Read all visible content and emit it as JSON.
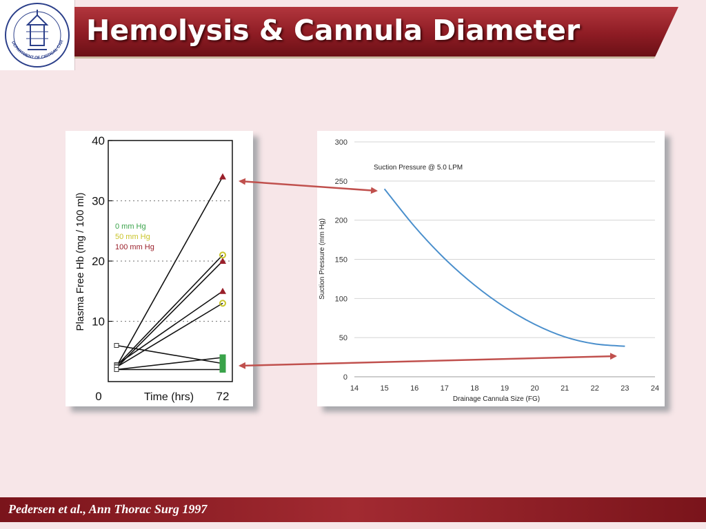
{
  "slide": {
    "title": "Hemolysis & Cannula Diameter",
    "footer_citation": "Pedersen et al., Ann Thorac Surg 1997",
    "logo_text": "DEPARTMENT OF CRITICAL CARE MEDICINE"
  },
  "colors": {
    "title_bar": "#8e1c24",
    "footer_bar": "#8e1c24",
    "background": "#f7e6e8",
    "arrow": "#c0504d",
    "curve": "#4a8fcc",
    "series_0": "#3aa34a",
    "series_50": "#c9c42a",
    "series_100": "#9a1f2a"
  },
  "chart_data": [
    {
      "type": "line",
      "title": "",
      "xlabel": "Time (hrs)",
      "ylabel": "Plasma Free Hb (mg / 100 ml)",
      "x_ticks": [
        "0",
        "72"
      ],
      "y_ticks": [
        "10",
        "20",
        "30",
        "40"
      ],
      "ylim": [
        0,
        40
      ],
      "grid": "dotted horizontal",
      "legend": {
        "placement": "left-middle",
        "entries": [
          "0 mm Hg",
          "50 mm Hg",
          "100 mm Hg"
        ]
      },
      "series": [
        {
          "name": "100 mm Hg",
          "start": 2.5,
          "end": 34
        },
        {
          "name": "100 mm Hg",
          "start": 2.3,
          "end": 20
        },
        {
          "name": "100 mm Hg",
          "start": 2.8,
          "end": 15
        },
        {
          "name": "50 mm Hg",
          "start": 2.6,
          "end": 21
        },
        {
          "name": "50 mm Hg",
          "start": 2.4,
          "end": 13
        },
        {
          "name": "0 mm Hg",
          "start": 6,
          "end": 3
        },
        {
          "name": "0 mm Hg",
          "start": 2,
          "end": 4
        },
        {
          "name": "0 mm Hg",
          "start": 2,
          "end": 2
        }
      ]
    },
    {
      "type": "line",
      "title": "Suction Pressure @ 5.0 LPM",
      "xlabel": "Drainage Cannula Size (FG)",
      "ylabel": "Suction Pressure (mm Hg)",
      "xlim": [
        14,
        24
      ],
      "ylim": [
        0,
        300
      ],
      "x_ticks": [
        "14",
        "15",
        "16",
        "17",
        "18",
        "19",
        "20",
        "21",
        "22",
        "23",
        "24"
      ],
      "y_ticks": [
        "0",
        "50",
        "100",
        "150",
        "200",
        "250",
        "300"
      ],
      "grid": "horizontal",
      "series": [
        {
          "x": [
            15,
            16,
            17,
            18,
            19,
            20,
            21,
            22,
            23
          ],
          "y": [
            240,
            192,
            151,
            117,
            89,
            67,
            51,
            42,
            39
          ]
        }
      ]
    }
  ]
}
